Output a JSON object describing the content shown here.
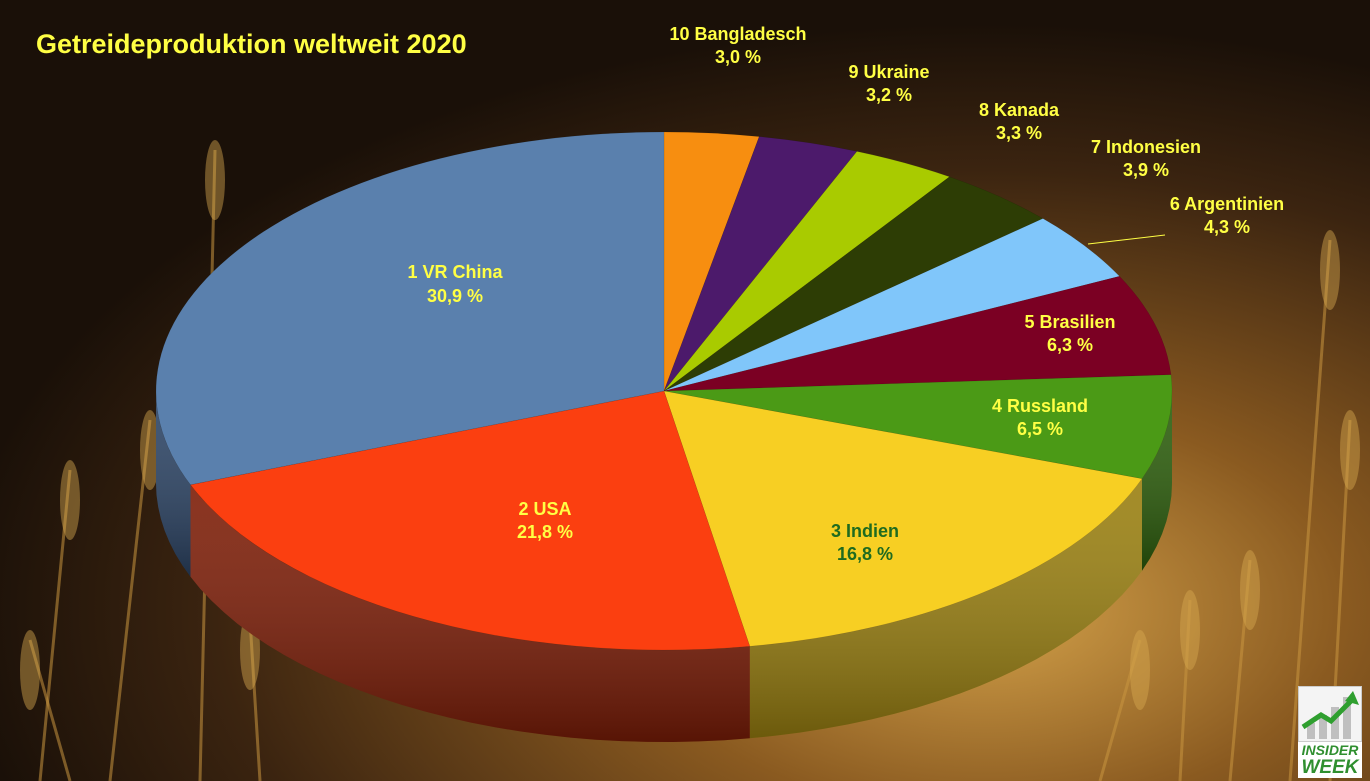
{
  "chart_data": {
    "type": "pie",
    "style": "3d",
    "title": "Getreideproduktion weltweit 2020",
    "legend": "none",
    "slices": [
      {
        "label": "1  VR China",
        "value_label": "30,9 %",
        "value": 30.9,
        "color": "#5a80ad",
        "side_color": "#2c4465",
        "text_color": "#ffff44"
      },
      {
        "label": "2 USA",
        "value_label": "21,8 %",
        "value": 21.8,
        "color": "#fb3f10",
        "side_color": "#7d1d07",
        "text_color": "#ffff44"
      },
      {
        "label": "3 Indien",
        "value_label": "16,8 %",
        "value": 16.8,
        "color": "#f7cf23",
        "side_color": "#9a8010",
        "text_color": "#1f6b1f"
      },
      {
        "label": "4 Russland",
        "value_label": "6,5 %",
        "value": 6.5,
        "color": "#4b9a16",
        "side_color": "#2c5e0b",
        "text_color": "#ffff44"
      },
      {
        "label": "5 Brasilien",
        "value_label": "6,3 %",
        "value": 6.3,
        "color": "#7b0023",
        "side_color": "#3f0012",
        "text_color": "#ffff44"
      },
      {
        "label": "6 Argentinien",
        "value_label": "4,3 %",
        "value": 4.3,
        "color": "#80c6fa",
        "side_color": "#4a7aa0",
        "text_color": "#ffff44"
      },
      {
        "label": "7 Indonesien",
        "value_label": "3,9 %",
        "value": 3.9,
        "color": "#2d3d05",
        "side_color": "#1a2403",
        "text_color": "#ffff44"
      },
      {
        "label": "8 Kanada",
        "value_label": "3,3 %",
        "value": 3.3,
        "color": "#a9cb00",
        "side_color": "#657a00",
        "text_color": "#ffff44"
      },
      {
        "label": "9 Ukraine",
        "value_label": "3,2 %",
        "value": 3.2,
        "color": "#4c1a6b",
        "side_color": "#2a0e3b",
        "text_color": "#ffff44"
      },
      {
        "label": "10 Bangladesch",
        "value_label": "3,0 %",
        "value": 3.0,
        "color": "#f78e10",
        "side_color": "#8a4f08",
        "text_color": "#ffff44"
      }
    ]
  },
  "colors": {
    "title": "#ffff44",
    "background_dark": "#1e130a",
    "background_warm": "#b07a2a"
  },
  "logo": {
    "line1": "INSIDER",
    "line2": "WEEK",
    "icon": "rising-chart-icon"
  }
}
